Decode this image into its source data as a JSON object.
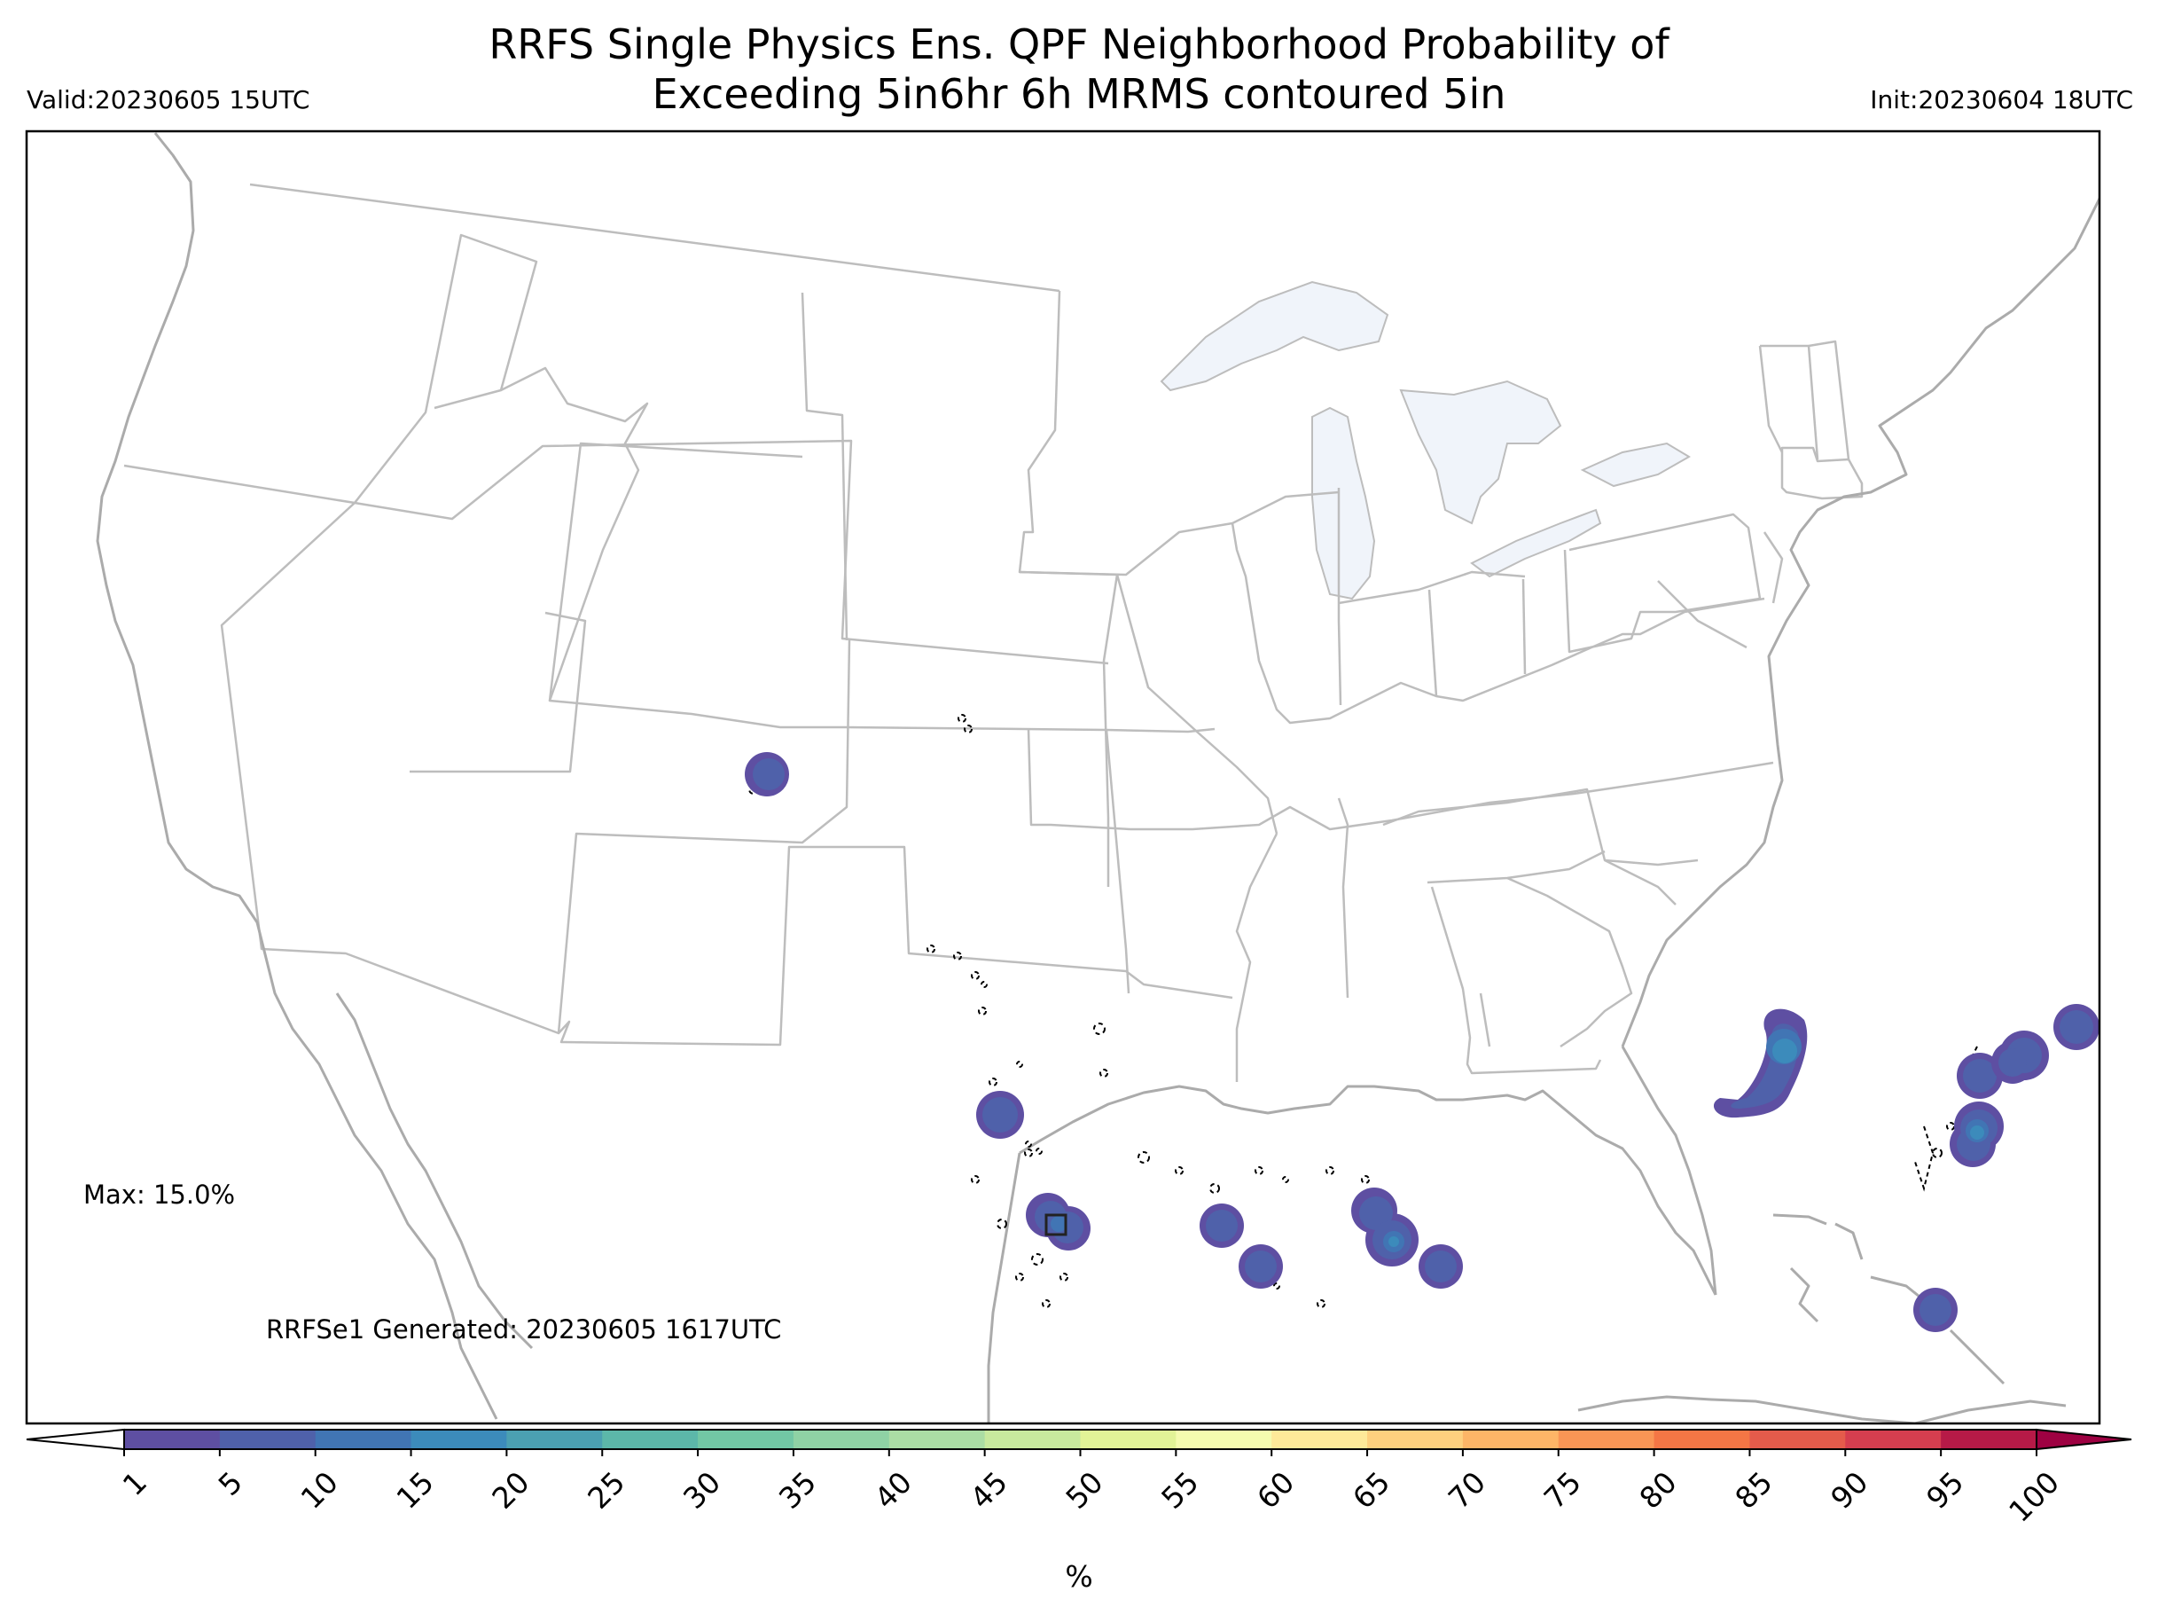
{
  "header": {
    "title_line1": "RRFS Single Physics Ens. QPF Neighborhood Probability of",
    "title_line2": "Exceeding 5in6hr 6h MRMS contoured 5in",
    "valid": "Valid:20230605 15UTC",
    "init": "Init:20230604 18UTC"
  },
  "annotations": {
    "max": "Max: 15.0%",
    "generated": "RRFSe1 Generated: 20230605 1617UTC"
  },
  "colorbar": {
    "unit": "%",
    "ticks": [
      "1",
      "5",
      "10",
      "15",
      "20",
      "25",
      "30",
      "35",
      "40",
      "45",
      "50",
      "55",
      "60",
      "65",
      "70",
      "75",
      "80",
      "85",
      "90",
      "95",
      "100"
    ],
    "colors": [
      "#5e4fa2",
      "#4f61aa",
      "#4175b4",
      "#3c8bbb",
      "#4ba0b1",
      "#5cb7a9",
      "#72c7a4",
      "#8fd2a4",
      "#abdda4",
      "#c8e99e",
      "#e2f397",
      "#f5fbaf",
      "#fee999",
      "#fed07e",
      "#fdb567",
      "#f99555",
      "#f47645",
      "#e45b4b",
      "#d53e4f",
      "#b61a47",
      "#9e0142"
    ],
    "under_color": "#ffffff",
    "over_color": "#9e0142"
  },
  "map": {
    "region": "CONUS",
    "lake_color": "#f0f4fa",
    "border_color": "#bdbdbd",
    "coast_color": "#ababab",
    "probability_blobs": [
      {
        "name": "colorado",
        "max_pct": 5
      },
      {
        "name": "central-texas",
        "max_pct": 5
      },
      {
        "name": "houston",
        "max_pct": 10
      },
      {
        "name": "gulf-west",
        "max_pct": 5
      },
      {
        "name": "gulf-central-1",
        "max_pct": 5
      },
      {
        "name": "gulf-central-2",
        "max_pct": 15
      },
      {
        "name": "gulf-central-3",
        "max_pct": 5
      },
      {
        "name": "atlantic-1",
        "max_pct": 15
      },
      {
        "name": "atlantic-2",
        "max_pct": 10
      },
      {
        "name": "atlantic-3",
        "max_pct": 15
      },
      {
        "name": "bahamas",
        "max_pct": 5
      }
    ]
  }
}
